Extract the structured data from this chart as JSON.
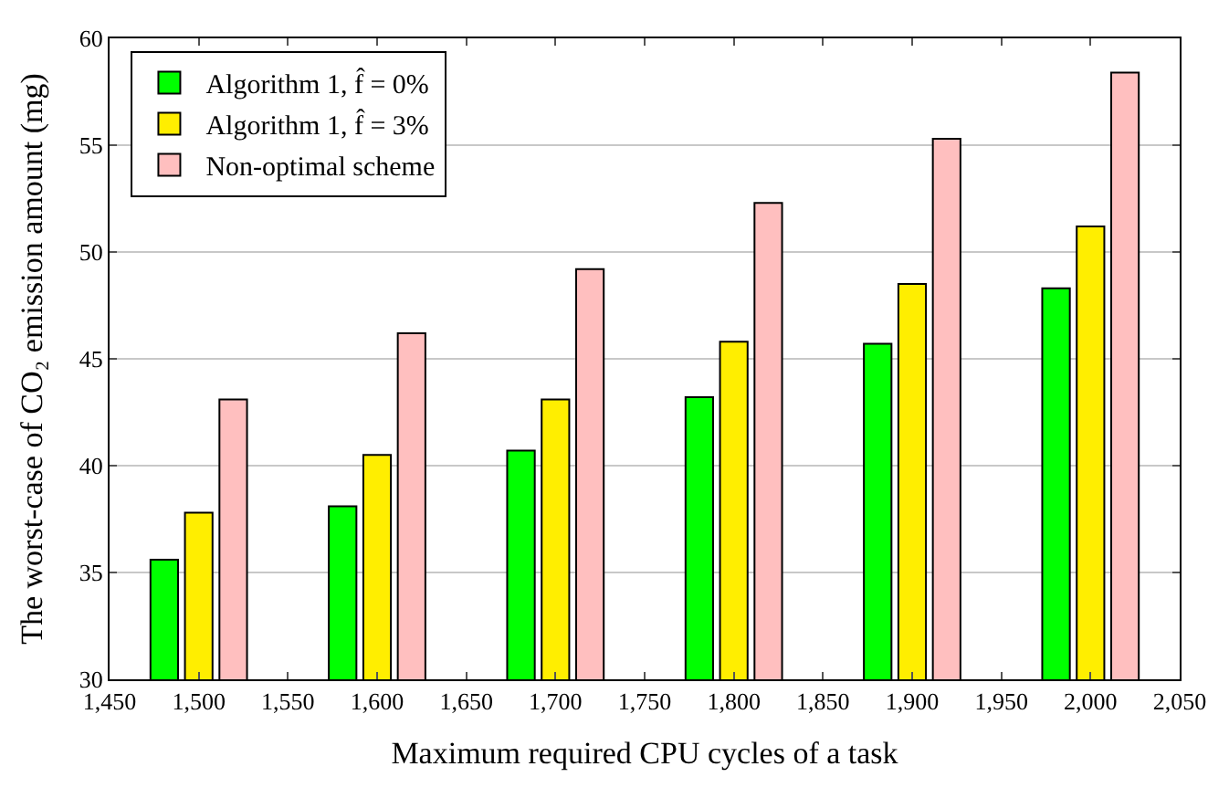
{
  "chart_data": {
    "type": "bar",
    "xlabel": "Maximum required CPU cycles of a task",
    "ylabel": "The worst-case of CO₂ emission amount (mg)",
    "x": [
      1500,
      1600,
      1700,
      1800,
      1900,
      2000
    ],
    "series": [
      {
        "name": "Algorithm 1, f̂ = 0%",
        "color": "#00ff00",
        "values": [
          35.6,
          38.1,
          40.7,
          43.2,
          45.7,
          48.3
        ]
      },
      {
        "name": "Algorithm 1, f̂ = 3%",
        "color": "#ffee00",
        "values": [
          37.8,
          40.5,
          43.1,
          45.8,
          48.5,
          51.2
        ]
      },
      {
        "name": "Non-optimal scheme",
        "color": "#ffbfbf",
        "values": [
          43.1,
          46.2,
          49.2,
          52.3,
          55.3,
          58.4
        ]
      }
    ],
    "xlim": [
      1450,
      2050
    ],
    "xticks": [
      {
        "value": 1450,
        "label": "1,450"
      },
      {
        "value": 1500,
        "label": "1,500"
      },
      {
        "value": 1550,
        "label": "1,550"
      },
      {
        "value": 1600,
        "label": "1,600"
      },
      {
        "value": 1650,
        "label": "1,650"
      },
      {
        "value": 1700,
        "label": "1,700"
      },
      {
        "value": 1750,
        "label": "1,750"
      },
      {
        "value": 1800,
        "label": "1,800"
      },
      {
        "value": 1850,
        "label": "1,850"
      },
      {
        "value": 1900,
        "label": "1,900"
      },
      {
        "value": 1950,
        "label": "1,950"
      },
      {
        "value": 2000,
        "label": "2,000"
      },
      {
        "value": 2050,
        "label": "2,050"
      }
    ],
    "ylim": [
      30,
      60
    ],
    "yticks": [
      30,
      35,
      40,
      45,
      50,
      55,
      60
    ],
    "grid": "y",
    "legend": "top left"
  }
}
